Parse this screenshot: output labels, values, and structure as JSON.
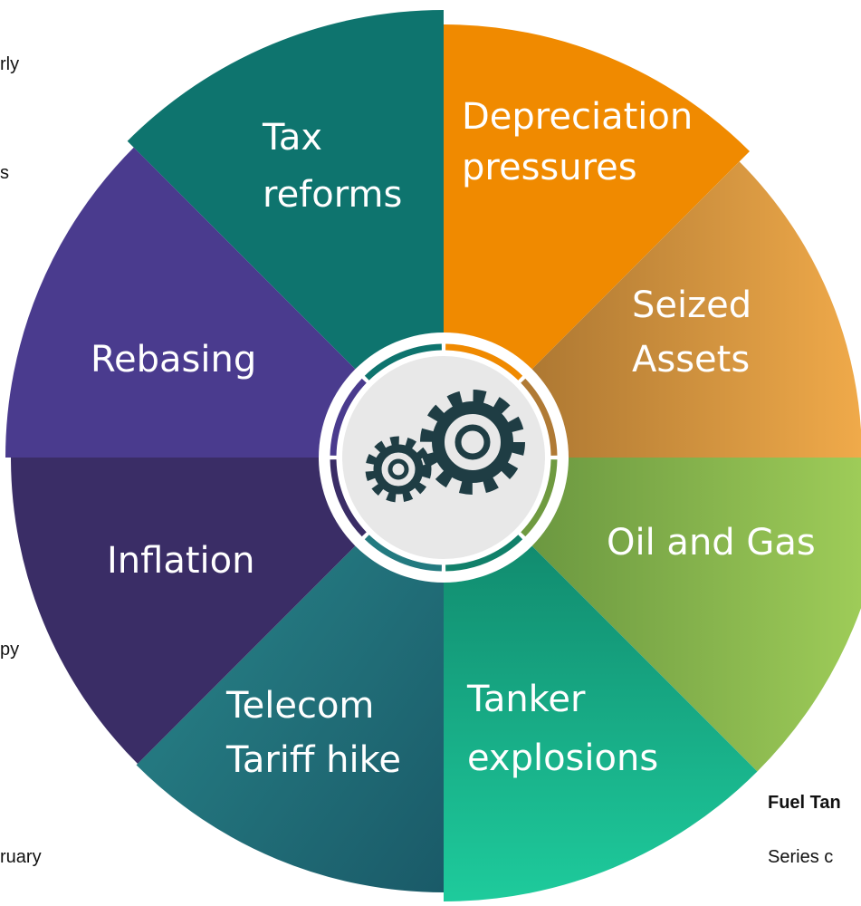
{
  "segments": [
    {
      "label": [
        "Tax",
        "reforms"
      ]
    },
    {
      "label": [
        "Depreciation",
        "pressures"
      ]
    },
    {
      "label": [
        "Seized",
        "Assets"
      ]
    },
    {
      "label": [
        "Oil and Gas"
      ]
    },
    {
      "label": [
        "Tanker",
        "explosions"
      ]
    },
    {
      "label": [
        "Telecom",
        "Tariff hike"
      ]
    },
    {
      "label": [
        "Inflation"
      ]
    },
    {
      "label": [
        "Rebasing"
      ]
    }
  ],
  "edge_texts": [
    "rly",
    "s",
    "py",
    "ruary",
    "Fuel Tan",
    "Series c"
  ]
}
